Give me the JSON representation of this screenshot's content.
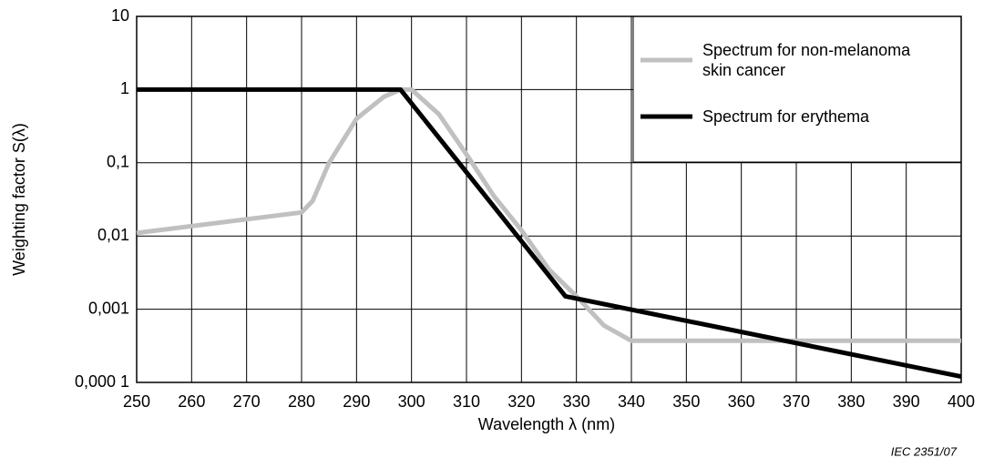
{
  "chart_data": {
    "type": "line",
    "x_label": "Wavelength λ  (nm)",
    "y_label": "Weighting factor S(λ)",
    "footnote": "IEC  2351/07",
    "ylog": true,
    "grid": true,
    "legend": "upper right",
    "xlim": [
      250,
      400
    ],
    "xticks": [
      250,
      260,
      270,
      280,
      290,
      300,
      310,
      320,
      330,
      340,
      350,
      360,
      370,
      380,
      390,
      400
    ],
    "ylim": [
      0.0001,
      10
    ],
    "yticks": [
      {
        "value": 0.0001,
        "label": "0,000 1"
      },
      {
        "value": 0.001,
        "label": "0,001"
      },
      {
        "value": 0.01,
        "label": "0,01"
      },
      {
        "value": 0.1,
        "label": "0,1"
      },
      1,
      10
    ],
    "series": [
      {
        "name": "Spectrum for non-melanoma skin cancer",
        "color": "#c0c0c0",
        "x": [
          250,
          280,
          282,
          285,
          290,
          295,
          298,
          300,
          305,
          310,
          315,
          320,
          325,
          330,
          335,
          340,
          400
        ],
        "values": [
          0.011,
          0.021,
          0.03,
          0.1,
          0.4,
          0.8,
          1.0,
          1.0,
          0.46,
          0.13,
          0.035,
          0.012,
          0.0035,
          0.0015,
          0.0006,
          0.00037,
          0.00037
        ]
      },
      {
        "name": "Spectrum for erythema",
        "color": "#000000",
        "x": [
          250,
          298,
          328,
          400
        ],
        "values": [
          1,
          1,
          0.0015,
          0.00012
        ]
      }
    ]
  }
}
